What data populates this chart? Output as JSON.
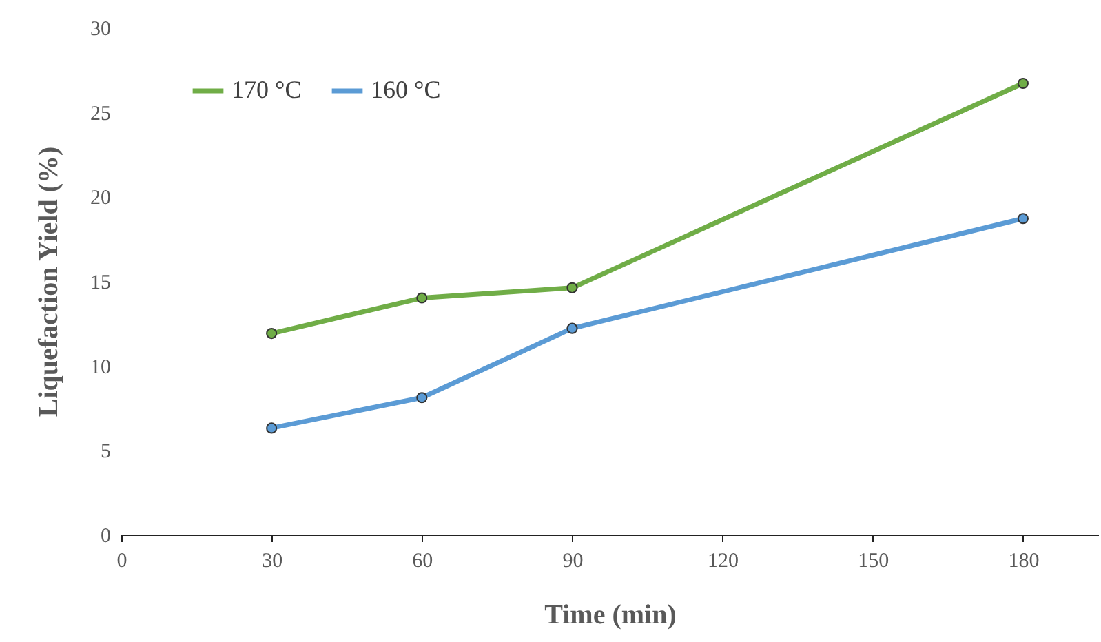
{
  "chart_data": {
    "type": "line",
    "xlabel": "Time (min)",
    "ylabel": "Liquefaction Yield (%)",
    "x": [
      30,
      60,
      90,
      180
    ],
    "series": [
      {
        "name": "170 °C",
        "color": "#70ad47",
        "values": [
          11.9,
          14.0,
          14.6,
          26.7
        ]
      },
      {
        "name": "160 °C",
        "color": "#5b9bd5",
        "values": [
          6.3,
          8.1,
          12.2,
          18.7
        ]
      }
    ],
    "xlim": [
      0,
      195
    ],
    "xticks": [
      0,
      30,
      60,
      90,
      120,
      150,
      180
    ],
    "ylim": [
      0,
      30
    ],
    "yticks": [
      0,
      5,
      10,
      15,
      20,
      25,
      30
    ],
    "legend": "top left",
    "marker": "circle",
    "line_style": "solid",
    "grid": false
  }
}
